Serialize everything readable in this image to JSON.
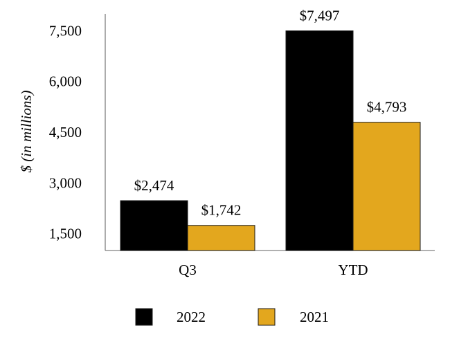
{
  "chart_data": {
    "type": "bar",
    "categories": [
      "Q3",
      "YTD"
    ],
    "series": [
      {
        "name": "2022",
        "values": [
          2474,
          7497
        ],
        "labels": [
          "$2,474",
          "$7,497"
        ],
        "color": "#000000"
      },
      {
        "name": "2021",
        "values": [
          1742,
          4793
        ],
        "labels": [
          "$1,742",
          "$4,793"
        ],
        "color": "#E3A71E"
      }
    ],
    "ylabel": "$ (in millions)",
    "xlabel": "",
    "ylim": [
      1000,
      8000
    ],
    "yticks": [
      1500,
      3000,
      4500,
      6000,
      7500
    ],
    "ytick_labels": [
      "1,500",
      "3,000",
      "4,500",
      "6,000",
      "7,500"
    ],
    "grid": false,
    "legend_position": "bottom"
  }
}
